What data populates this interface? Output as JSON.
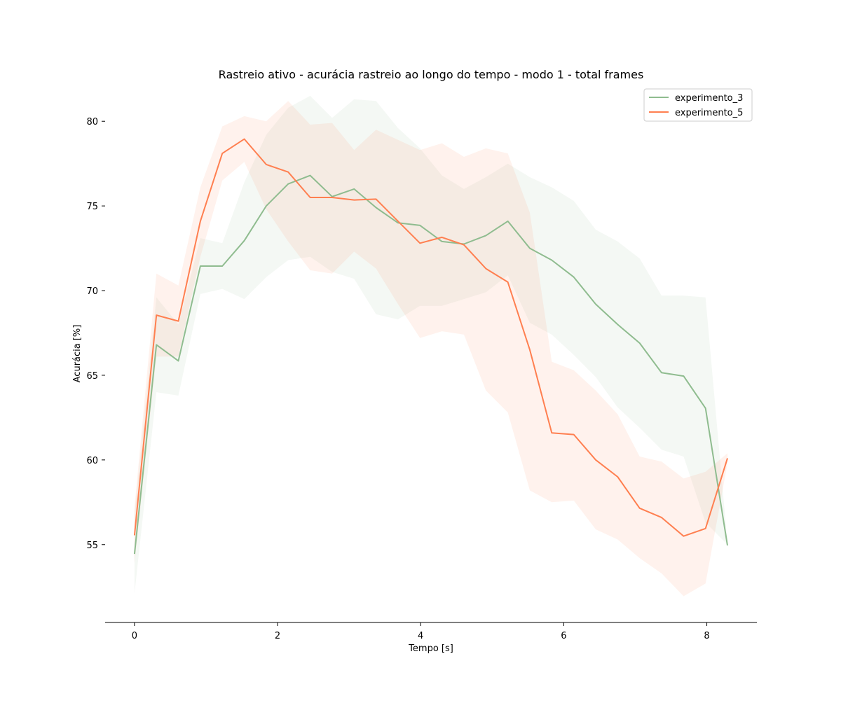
{
  "chart_data": {
    "type": "line",
    "title": "Rastreio ativo - acurácia rastreio ao longo do tempo - modo 1 - total frames",
    "xlabel": "Tempo [s]",
    "ylabel": "Acurácia [%]",
    "xlim": [
      -0.41,
      8.7
    ],
    "ylim": [
      50.4,
      82.2
    ],
    "xticks": [
      0,
      2,
      4,
      6,
      8
    ],
    "xtick_labels": [
      "0",
      "2",
      "4",
      "6",
      "8"
    ],
    "yticks": [
      55,
      60,
      65,
      70,
      75,
      80
    ],
    "ytick_labels": [
      "55",
      "60",
      "65",
      "70",
      "75",
      "80"
    ],
    "grid": false,
    "legend_position": "top-right",
    "x": [
      0,
      0.307,
      0.614,
      0.921,
      1.228,
      1.535,
      1.842,
      2.149,
      2.456,
      2.763,
      3.07,
      3.377,
      3.684,
      3.991,
      4.298,
      4.605,
      4.912,
      5.219,
      5.526,
      5.833,
      6.14,
      6.447,
      6.754,
      7.061,
      7.368,
      7.675,
      7.982,
      8.289
    ],
    "series": [
      {
        "name": "experimento_3",
        "color": "#8fbc8f",
        "values": [
          54.45,
          66.8,
          65.85,
          71.45,
          71.45,
          72.95,
          75.0,
          76.3,
          76.8,
          75.55,
          76.0,
          74.9,
          74.0,
          73.85,
          72.9,
          72.75,
          73.25,
          74.1,
          72.5,
          71.8,
          70.8,
          69.2,
          68.0,
          66.9,
          65.15,
          64.95,
          63.05,
          54.95
        ],
        "ci_lower": [
          52.1,
          64.0,
          63.8,
          69.8,
          70.1,
          69.5,
          70.8,
          71.8,
          72.0,
          71.1,
          70.7,
          68.6,
          68.3,
          69.1,
          69.1,
          69.5,
          69.9,
          70.9,
          68.1,
          67.4,
          66.2,
          64.9,
          63.1,
          61.9,
          60.6,
          60.2,
          56.3,
          55.0
        ],
        "ci_upper": [
          56.8,
          69.6,
          68.0,
          73.1,
          72.8,
          76.4,
          79.2,
          80.8,
          81.5,
          80.2,
          81.3,
          81.2,
          79.6,
          78.4,
          76.8,
          76.0,
          76.7,
          77.5,
          76.7,
          76.1,
          75.3,
          73.6,
          72.9,
          71.9,
          69.7,
          69.7,
          69.6,
          55.1
        ]
      },
      {
        "name": "experimento_5",
        "color": "#ff7f50",
        "values": [
          55.55,
          68.55,
          68.2,
          74.1,
          78.1,
          78.95,
          77.45,
          77.0,
          75.5,
          75.5,
          75.35,
          75.4,
          74.1,
          72.8,
          73.15,
          72.7,
          71.3,
          70.5,
          66.5,
          61.6,
          61.5,
          60.0,
          59.0,
          57.15,
          56.6,
          55.5,
          55.95,
          60.1
        ],
        "ci_lower": [
          53.9,
          66.1,
          66.1,
          72.0,
          76.5,
          77.6,
          74.8,
          72.9,
          71.2,
          71.0,
          72.3,
          71.3,
          69.2,
          67.2,
          67.6,
          67.4,
          64.1,
          62.8,
          58.2,
          57.5,
          57.6,
          55.9,
          55.3,
          54.2,
          53.3,
          51.95,
          52.7,
          59.8
        ],
        "ci_upper": [
          57.2,
          71.0,
          70.3,
          76.1,
          79.7,
          80.3,
          80.0,
          81.2,
          79.8,
          79.9,
          78.3,
          79.5,
          78.9,
          78.3,
          78.7,
          77.9,
          78.4,
          78.1,
          74.6,
          65.8,
          65.3,
          64.1,
          62.7,
          60.2,
          59.9,
          58.9,
          59.3,
          60.4
        ]
      }
    ]
  }
}
